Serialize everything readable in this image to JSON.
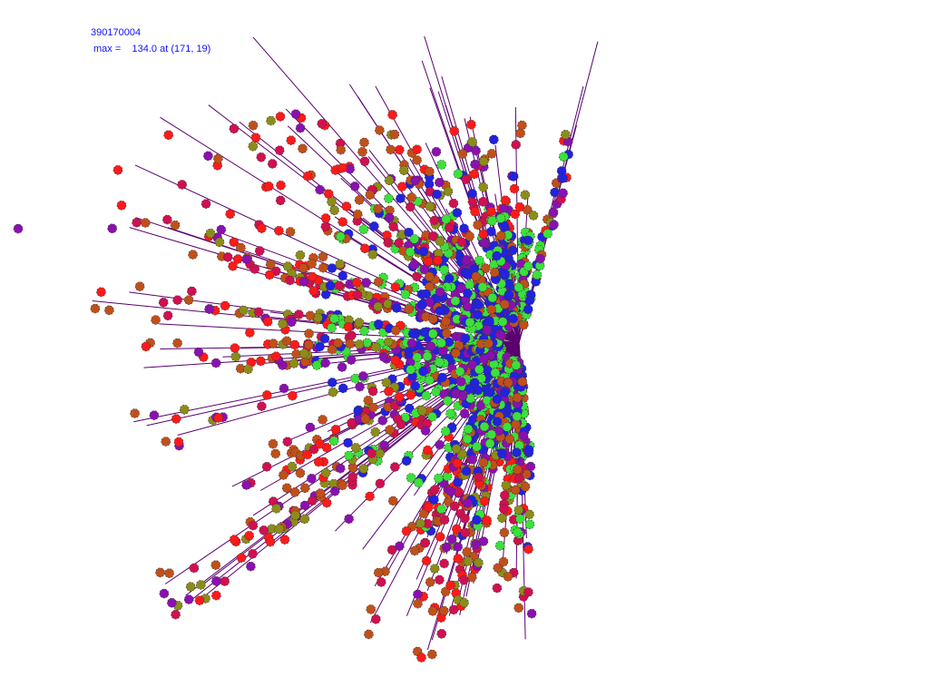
{
  "header": {
    "run_id": "390170004",
    "max_label": "max =",
    "max_value": "134.0 at (171, 19)"
  },
  "colors": {
    "text": "#1010ff",
    "ray": "#5a0070",
    "points": [
      "#ff1a1a",
      "#c0501a",
      "#8c8c1a",
      "#3ce03c",
      "#2222e0",
      "#8a10b0",
      "#d01050"
    ]
  }
}
